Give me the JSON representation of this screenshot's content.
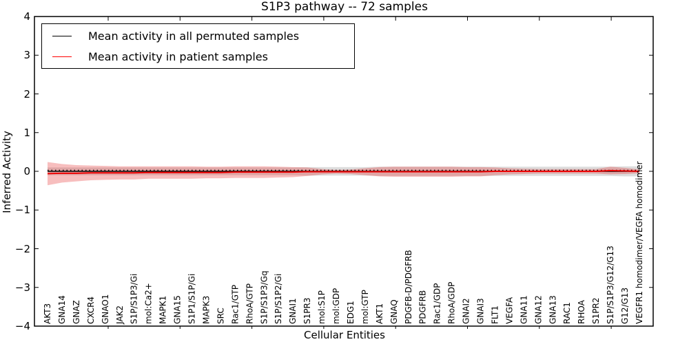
{
  "title": "S1P3 pathway -- 72 samples",
  "figure_bg": "#ffffff",
  "legend": {
    "items": [
      {
        "label": "Mean activity in all permuted samples",
        "color": "#000000"
      },
      {
        "label": "Mean activity in patient samples",
        "color": "#ff0000"
      }
    ]
  },
  "chart_data": {
    "type": "line",
    "title": "S1P3 pathway -- 72 samples",
    "xlabel": "Cellular Entities",
    "ylabel": "Inferred Activity",
    "ylim": [
      -4,
      4
    ],
    "yticks": [
      -4,
      -3,
      -2,
      -1,
      0,
      1,
      2,
      3,
      4
    ],
    "grid": false,
    "legend_position": "upper left",
    "categories": [
      "AKT3",
      "GNA14",
      "GNAZ",
      "CXCR4",
      "GNAO1",
      "JAK2",
      "S1P/S1P3/Gi",
      "mol:Ca2+",
      "MAPK1",
      "GNA15",
      "S1P1/S1P/Gi",
      "MAPK3",
      "SRC",
      "Rac1/GTP",
      "RhoA/GTP",
      "S1P/S1P3/Gq",
      "S1P/S1P2/Gi",
      "GNAI1",
      "S1PR3",
      "mol:S1P",
      "mol:GDP",
      "EDG1",
      "mol:GTP",
      "AKT1",
      "GNAQ",
      "PDGFB-D/PDGFRB",
      "PDGFRB",
      "Rac1/GDP",
      "RhoA/GDP",
      "GNAI2",
      "GNAI3",
      "FLT1",
      "VEGFA",
      "GNA11",
      "GNA12",
      "GNA13",
      "RAC1",
      "RHOA",
      "S1PR2",
      "S1P/S1P3/G12/G13",
      "G12/G13",
      "VEGFR1 homodimer/VEGFA homodimer"
    ],
    "series": [
      {
        "name": "Mean activity in all permuted samples",
        "color": "#000000",
        "style": "solid",
        "width": 1.6,
        "values": [
          0,
          0,
          0,
          0,
          0,
          0,
          0,
          0,
          0,
          0,
          0,
          0,
          0,
          0,
          0,
          0,
          0,
          0,
          0,
          0,
          0,
          0,
          0,
          0,
          0,
          0,
          0,
          0,
          0,
          0,
          0,
          0,
          0,
          0,
          0,
          0,
          0,
          0,
          0,
          0,
          0,
          0
        ]
      },
      {
        "name": "zero-reference",
        "color": "#000000",
        "style": "dotted",
        "width": 1.6,
        "values": [
          0,
          0,
          0,
          0,
          0,
          0,
          0,
          0,
          0,
          0,
          0,
          0,
          0,
          0,
          0,
          0,
          0,
          0,
          0,
          0,
          0,
          0,
          0,
          0,
          0,
          0,
          0,
          0,
          0,
          0,
          0,
          0,
          0,
          0,
          0,
          0,
          0,
          0,
          0,
          0,
          0,
          0
        ]
      },
      {
        "name": "Mean activity in patient samples",
        "color": "#ee0000",
        "style": "solid",
        "width": 2,
        "values": [
          -0.06,
          -0.05,
          -0.05,
          -0.04,
          -0.04,
          -0.04,
          -0.04,
          -0.03,
          -0.03,
          -0.03,
          -0.03,
          -0.03,
          -0.03,
          -0.02,
          -0.02,
          -0.02,
          -0.02,
          -0.02,
          -0.01,
          -0.01,
          -0.01,
          -0.01,
          -0.01,
          -0.01,
          -0.01,
          -0.01,
          -0.01,
          -0.01,
          -0.01,
          -0.01,
          -0.01,
          0,
          0,
          0,
          0,
          0,
          0,
          0,
          0,
          0.02,
          0.01,
          0
        ]
      }
    ],
    "bands": [
      {
        "name": "permuted-samples-std",
        "color": "rgba(120,120,120,0.25)",
        "center": 0,
        "half_widths": [
          0.1,
          0.1,
          0.1,
          0.1,
          0.1,
          0.1,
          0.1,
          0.1,
          0.1,
          0.1,
          0.1,
          0.1,
          0.1,
          0.1,
          0.1,
          0.1,
          0.1,
          0.1,
          0.11,
          0.11,
          0.11,
          0.11,
          0.11,
          0.12,
          0.12,
          0.12,
          0.12,
          0.12,
          0.12,
          0.12,
          0.12,
          0.12,
          0.12,
          0.12,
          0.12,
          0.12,
          0.12,
          0.12,
          0.12,
          0.12,
          0.13,
          0.13
        ]
      },
      {
        "name": "patient-samples-std",
        "color": "rgba(230,40,40,0.30)",
        "centers": [
          -0.06,
          -0.05,
          -0.05,
          -0.04,
          -0.04,
          -0.04,
          -0.04,
          -0.03,
          -0.03,
          -0.03,
          -0.03,
          -0.03,
          -0.03,
          -0.02,
          -0.02,
          -0.02,
          -0.02,
          -0.02,
          -0.01,
          -0.01,
          -0.01,
          -0.01,
          -0.01,
          -0.01,
          -0.01,
          -0.01,
          -0.01,
          -0.01,
          -0.01,
          -0.01,
          -0.01,
          0,
          0,
          0,
          0,
          0,
          0,
          0,
          0,
          0.02,
          0.01,
          0
        ],
        "half_widths": [
          0.3,
          0.24,
          0.21,
          0.19,
          0.18,
          0.17,
          0.17,
          0.16,
          0.16,
          0.16,
          0.16,
          0.15,
          0.15,
          0.15,
          0.15,
          0.15,
          0.14,
          0.13,
          0.11,
          0.07,
          0.05,
          0.06,
          0.09,
          0.12,
          0.13,
          0.13,
          0.13,
          0.13,
          0.13,
          0.12,
          0.12,
          0.1,
          0.08,
          0.07,
          0.06,
          0.06,
          0.06,
          0.06,
          0.06,
          0.1,
          0.08,
          0.05
        ]
      }
    ]
  }
}
